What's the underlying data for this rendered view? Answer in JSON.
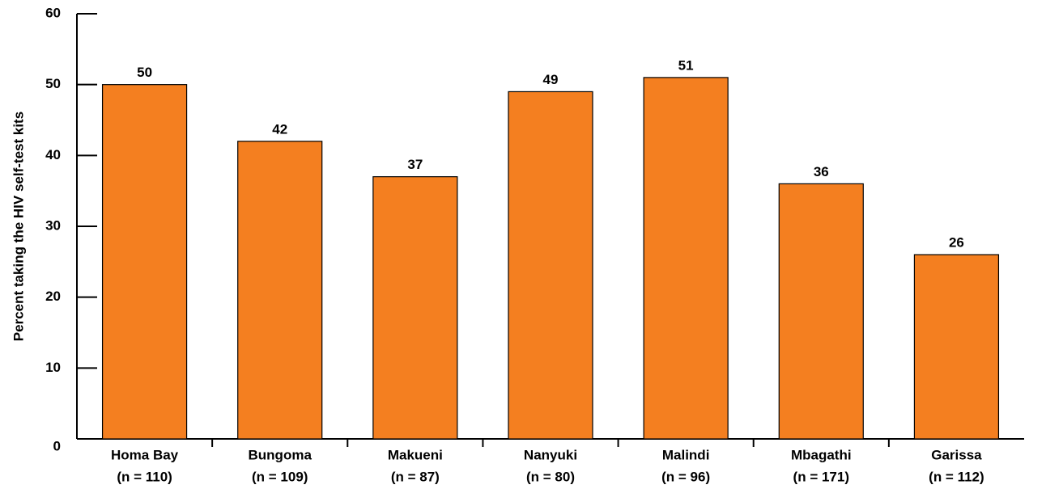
{
  "chart_data": {
    "type": "bar",
    "y_label": "Percent taking the HIV self-test kits",
    "categories": [
      [
        "Homa Bay",
        "(n = 110)"
      ],
      [
        "Bungoma",
        "(n = 109)"
      ],
      [
        "Makueni",
        "(n = 87)"
      ],
      [
        "Nanyuki",
        "(n = 80)"
      ],
      [
        "Malindi",
        "(n = 96)"
      ],
      [
        "Mbagathi",
        "(n = 171)"
      ],
      [
        "Garissa",
        "(n = 112)"
      ]
    ],
    "values": [
      50,
      42,
      37,
      49,
      51,
      36,
      26
    ],
    "color": "#f47f20",
    "ylim": [
      0,
      60
    ],
    "yticks": [
      0,
      10,
      20,
      30,
      40,
      50,
      60
    ],
    "grid": false
  }
}
